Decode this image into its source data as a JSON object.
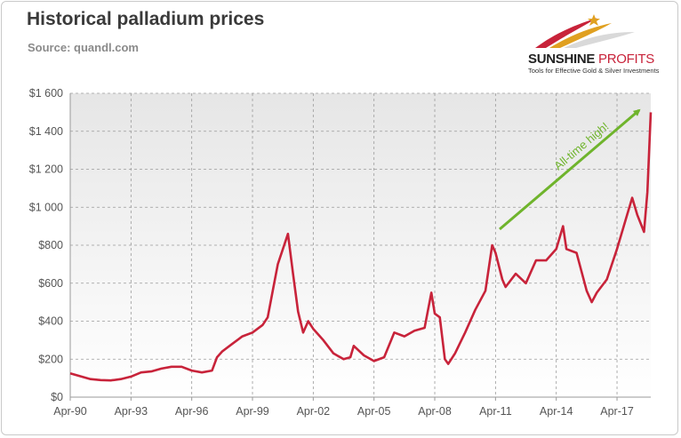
{
  "title": "Historical palladium prices",
  "subtitle": "Source: quandl.com",
  "logo": {
    "name_part1": "SUNSHINE",
    "name_part2": " PROFITS",
    "tagline": "Tools for Effective Gold & Silver Investments"
  },
  "colors": {
    "line": "#c8233a",
    "arrow": "#6fb42c",
    "grid": "#9a9a9a",
    "plot_bg_top": "#e6e6e6",
    "plot_bg_bottom": "#ffffff"
  },
  "chart_data": {
    "type": "line",
    "title": "Historical palladium prices",
    "subtitle": "Source: quandl.com",
    "xlabel": "",
    "ylabel": "",
    "x_ticks": [
      "Apr-90",
      "Apr-93",
      "Apr-96",
      "Apr-99",
      "Apr-02",
      "Apr-05",
      "Apr-08",
      "Apr-11",
      "Apr-14",
      "Apr-17"
    ],
    "y_ticks": [
      "$0",
      "$200",
      "$400",
      "$600",
      "$800",
      "$1 000",
      "$1 200",
      "$1 400",
      "$1 600"
    ],
    "xlim": [
      "1990-04",
      "2018-12"
    ],
    "ylim": [
      0,
      1600
    ],
    "grid": true,
    "series": [
      {
        "x": [
          "1990-04",
          "1990-10",
          "1991-04",
          "1991-10",
          "1992-04",
          "1992-10",
          "1993-04",
          "1993-10",
          "1994-04",
          "1994-10",
          "1995-04",
          "1995-10",
          "1996-04",
          "1996-10",
          "1997-04",
          "1997-07",
          "1997-10",
          "1998-04",
          "1998-10",
          "1999-04",
          "1999-10",
          "2000-01",
          "2000-04",
          "2000-07",
          "2000-10",
          "2001-01",
          "2001-04",
          "2001-07",
          "2001-10",
          "2002-01",
          "2002-04",
          "2002-10",
          "2003-04",
          "2003-10",
          "2004-02",
          "2004-04",
          "2004-10",
          "2005-04",
          "2005-10",
          "2006-04",
          "2006-10",
          "2007-04",
          "2007-10",
          "2008-02",
          "2008-04",
          "2008-07",
          "2008-10",
          "2008-12",
          "2009-04",
          "2009-10",
          "2010-04",
          "2010-10",
          "2011-02",
          "2011-04",
          "2011-08",
          "2011-10",
          "2012-04",
          "2012-10",
          "2013-04",
          "2013-10",
          "2014-04",
          "2014-08",
          "2014-10",
          "2015-04",
          "2015-10",
          "2016-01",
          "2016-04",
          "2016-10",
          "2017-04",
          "2017-10",
          "2018-01",
          "2018-04",
          "2018-08",
          "2018-10",
          "2018-12"
        ],
        "values": [
          125,
          110,
          95,
          90,
          88,
          95,
          108,
          130,
          135,
          150,
          160,
          160,
          140,
          130,
          140,
          210,
          240,
          280,
          320,
          340,
          380,
          420,
          560,
          700,
          780,
          860,
          650,
          450,
          340,
          400,
          360,
          300,
          230,
          200,
          210,
          270,
          220,
          190,
          210,
          340,
          320,
          350,
          365,
          550,
          440,
          420,
          200,
          175,
          230,
          340,
          460,
          560,
          800,
          760,
          620,
          580,
          650,
          600,
          720,
          720,
          780,
          900,
          780,
          760,
          560,
          500,
          550,
          620,
          780,
          960,
          1050,
          960,
          870,
          1080,
          1500
        ]
      }
    ],
    "annotations": [
      "All-time high!"
    ]
  }
}
